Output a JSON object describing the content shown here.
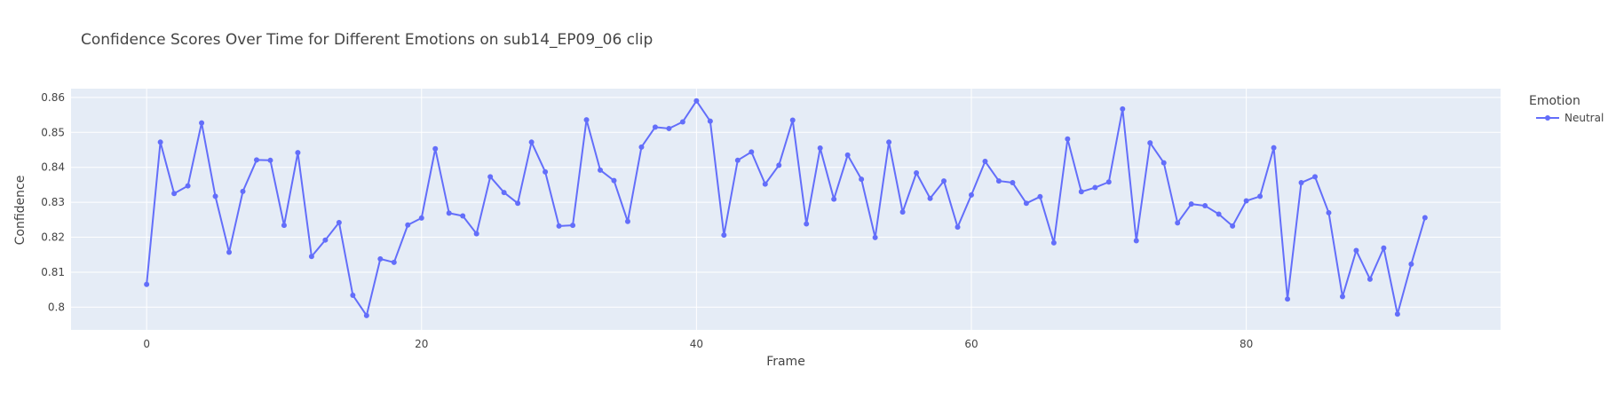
{
  "chart_data": {
    "type": "line",
    "title": "Confidence Scores Over Time for Different Emotions on sub14_EP09_06 clip",
    "xlabel": "Frame",
    "ylabel": "Confidence",
    "xlim": [
      -5.5,
      98.5
    ],
    "ylim": [
      0.7935,
      0.8625
    ],
    "x_ticks": [
      0,
      20,
      40,
      60,
      80
    ],
    "y_ticks": [
      0.8,
      0.81,
      0.82,
      0.83,
      0.84,
      0.85,
      0.86
    ],
    "y_tick_labels": [
      "0.8",
      "0.81",
      "0.82",
      "0.83",
      "0.84",
      "0.85",
      "0.86"
    ],
    "grid": true,
    "legend": {
      "title": "Emotion",
      "position": "top-right"
    },
    "colors": {
      "background": "#e5ecf6",
      "grid": "#ffffff",
      "series": "#636efa"
    },
    "series": [
      {
        "name": "Neutral",
        "x": [
          0,
          1,
          2,
          3,
          4,
          5,
          6,
          7,
          8,
          9,
          10,
          11,
          12,
          13,
          14,
          15,
          16,
          17,
          18,
          19,
          20,
          21,
          22,
          23,
          24,
          25,
          26,
          27,
          28,
          29,
          30,
          31,
          32,
          33,
          34,
          35,
          36,
          37,
          38,
          39,
          40,
          41,
          42,
          43,
          44,
          45,
          46,
          47,
          48,
          49,
          50,
          51,
          52,
          53,
          54,
          55,
          56,
          57,
          58,
          59,
          60,
          61,
          62,
          63,
          64,
          65,
          66,
          67,
          68,
          69,
          70,
          71,
          72,
          73,
          74,
          75,
          76,
          77,
          78,
          79,
          80,
          81,
          82,
          83,
          84,
          85,
          86,
          87,
          88,
          89,
          90,
          91,
          92,
          93
        ],
        "values": [
          0.8065,
          0.8472,
          0.8325,
          0.8347,
          0.8527,
          0.8317,
          0.8157,
          0.8331,
          0.8421,
          0.842,
          0.8234,
          0.8442,
          0.8145,
          0.8192,
          0.8242,
          0.8034,
          0.7976,
          0.8138,
          0.8128,
          0.8235,
          0.8255,
          0.8453,
          0.8269,
          0.8261,
          0.821,
          0.8373,
          0.8328,
          0.8297,
          0.8472,
          0.8387,
          0.8232,
          0.8234,
          0.8536,
          0.8392,
          0.8362,
          0.8245,
          0.8458,
          0.8515,
          0.8511,
          0.853,
          0.859,
          0.8532,
          0.8206,
          0.842,
          0.8444,
          0.8352,
          0.8406,
          0.8535,
          0.8238,
          0.8455,
          0.8309,
          0.8435,
          0.8366,
          0.8199,
          0.8472,
          0.8272,
          0.8384,
          0.8311,
          0.8361,
          0.8229,
          0.8321,
          0.8417,
          0.8361,
          0.8356,
          0.8297,
          0.8316,
          0.8184,
          0.8481,
          0.833,
          0.8342,
          0.8358,
          0.8567,
          0.819,
          0.847,
          0.8413,
          0.8241,
          0.8295,
          0.829,
          0.8266,
          0.8232,
          0.8304,
          0.8317,
          0.8456,
          0.8023,
          0.8356,
          0.8373,
          0.827,
          0.803,
          0.8162,
          0.808,
          0.8169,
          0.798,
          0.8123,
          0.8256
        ]
      }
    ]
  }
}
